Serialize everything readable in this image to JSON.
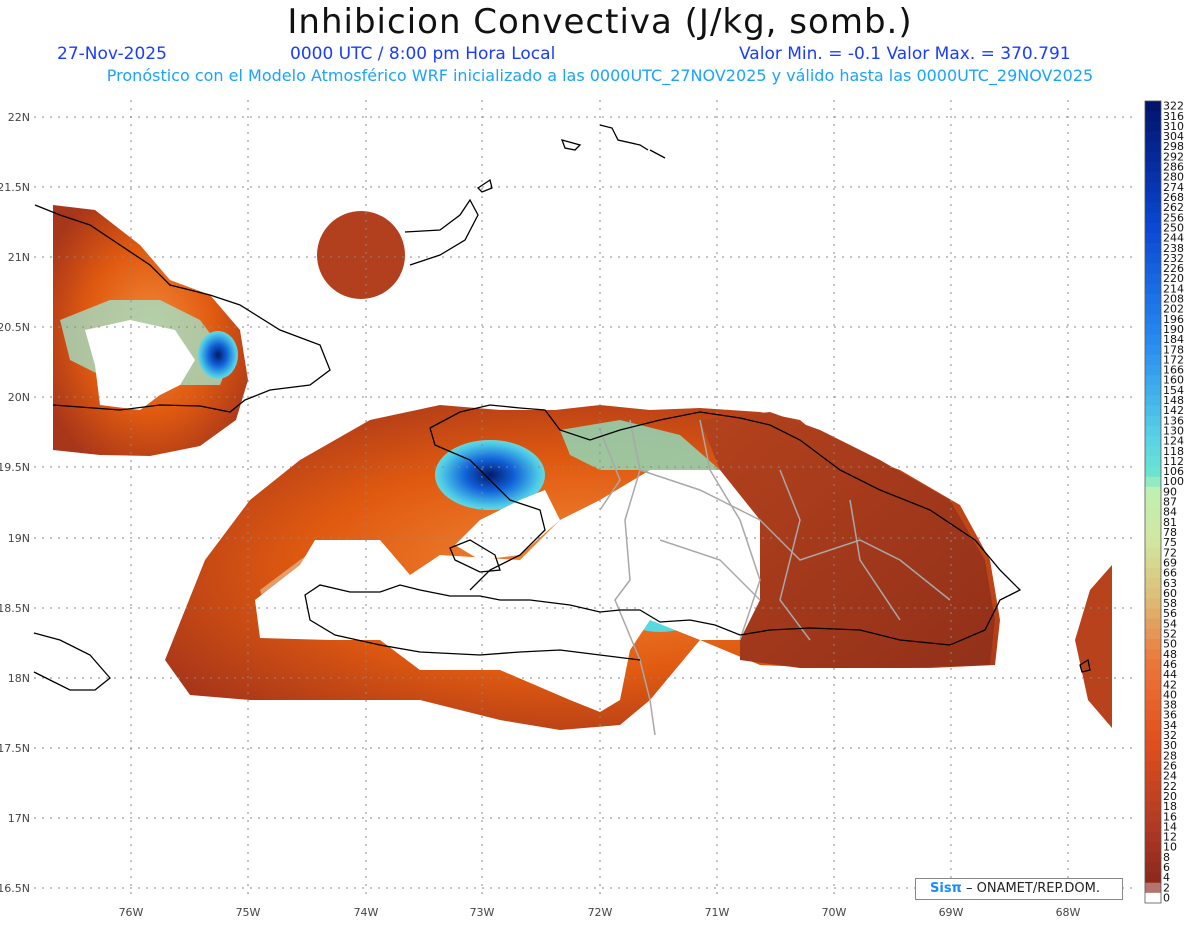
{
  "header": {
    "title": "Inhibicion Convectiva (J/kg, somb.)",
    "date": "27-Nov-2025",
    "time": "0000 UTC / 8:00 pm Hora Local",
    "minmax": "Valor Min. = -0.1  Valor Max. = 370.791",
    "subtitle": "Pronóstico con el Modelo Atmosférico WRF inicializado a las 0000UTC_27NOV2025 y válido hasta las  0000UTC_29NOV2025"
  },
  "axes": {
    "lat_labels": [
      "22N",
      "21.5N",
      "21N",
      "20.5N",
      "20N",
      "19.5N",
      "19N",
      "18.5N",
      "18N",
      "17.5N",
      "17N",
      "16.5N"
    ],
    "lon_labels": [
      "76W",
      "75W",
      "74W",
      "73W",
      "72W",
      "71W",
      "70W",
      "69W",
      "68W"
    ]
  },
  "colorbar": {
    "labels": [
      "322",
      "316",
      "310",
      "304",
      "298",
      "292",
      "286",
      "280",
      "274",
      "268",
      "262",
      "256",
      "250",
      "244",
      "238",
      "232",
      "226",
      "220",
      "214",
      "208",
      "202",
      "196",
      "190",
      "184",
      "178",
      "172",
      "166",
      "160",
      "154",
      "148",
      "142",
      "136",
      "130",
      "124",
      "118",
      "112",
      "106",
      "100",
      "90",
      "87",
      "84",
      "81",
      "78",
      "75",
      "72",
      "69",
      "66",
      "63",
      "60",
      "58",
      "56",
      "54",
      "52",
      "50",
      "48",
      "46",
      "44",
      "42",
      "40",
      "38",
      "36",
      "34",
      "32",
      "30",
      "28",
      "26",
      "24",
      "22",
      "20",
      "18",
      "16",
      "14",
      "12",
      "10",
      "8",
      "6",
      "4",
      "2",
      "0"
    ]
  },
  "credit": {
    "sis": "Sisπ",
    "text": "– ONAMET/REP.DOM."
  },
  "colors": {
    "low": "#8b2a1c",
    "mid": "#e05a10",
    "light": "#f2c9a0",
    "pale_green": "#b8f0c0",
    "cyan": "#5ee0d8",
    "blue": "#0a3ab8",
    "dark_blue": "#021a6a",
    "coast": "#000000",
    "border": "#a8a8a8"
  }
}
